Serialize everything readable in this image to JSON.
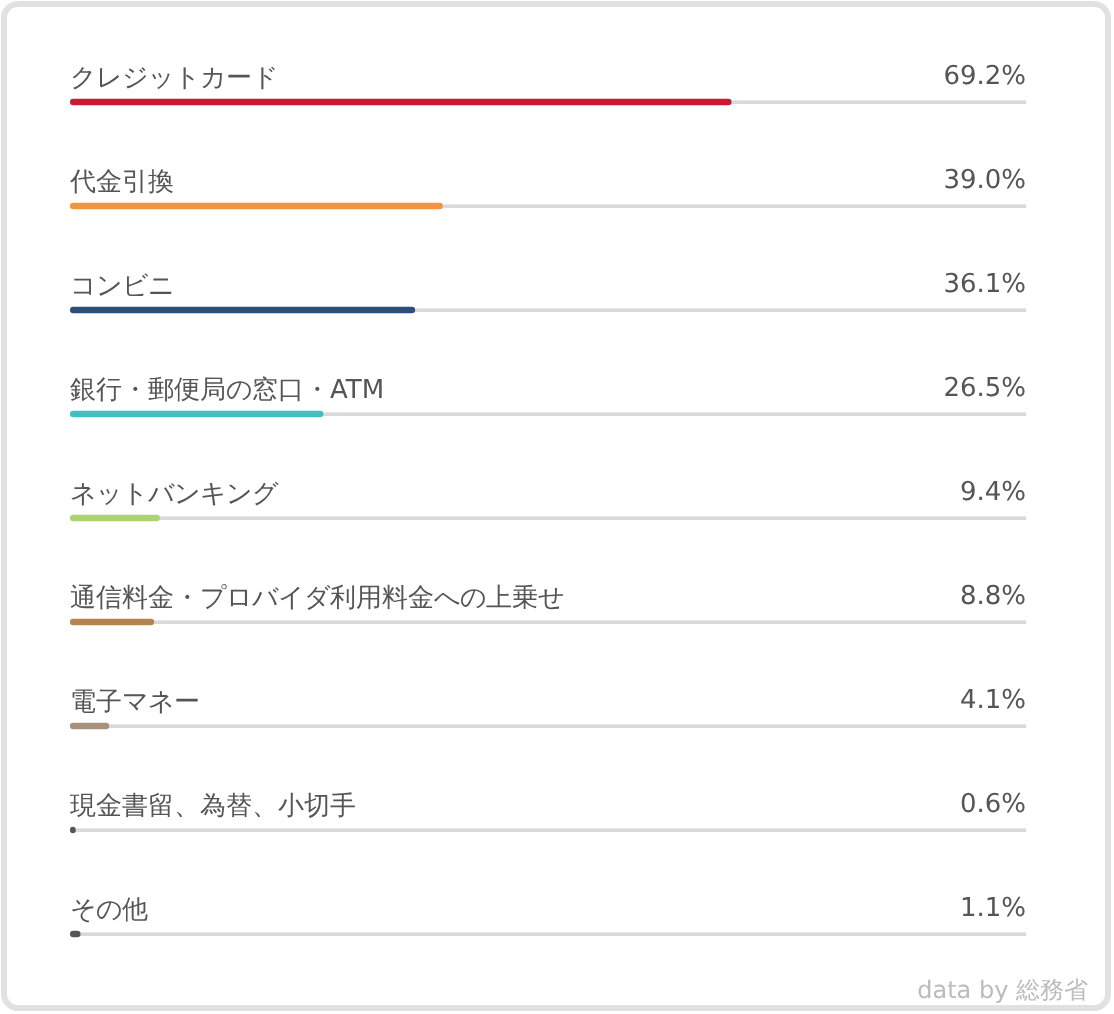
{
  "chart_data": {
    "type": "bar",
    "orientation": "horizontal",
    "categories": [
      "クレジットカード",
      "代金引換",
      "コンビニ",
      "銀行・郵便局の窓口・ATM",
      "ネットバンキング",
      "通信料金・プロバイダ利用料金への上乗せ",
      "電子マネー",
      "現金書留、為替、小切手",
      "その他"
    ],
    "values": [
      69.2,
      39.0,
      36.1,
      26.5,
      9.4,
      8.8,
      4.1,
      0.6,
      1.1
    ],
    "value_labels": [
      "69.2%",
      "39.0%",
      "36.1%",
      "26.5%",
      "9.4%",
      "8.8%",
      "4.1%",
      "0.6%",
      "1.1%"
    ],
    "colors": [
      "#cc1a33",
      "#f0963e",
      "#2d4e78",
      "#40c0c0",
      "#acd46c",
      "#b5834e",
      "#a8907e",
      "#555555",
      "#555555"
    ],
    "xlim": [
      0,
      100
    ],
    "tick_labels": "y",
    "annotations": [
      "data by 総務省"
    ]
  }
}
